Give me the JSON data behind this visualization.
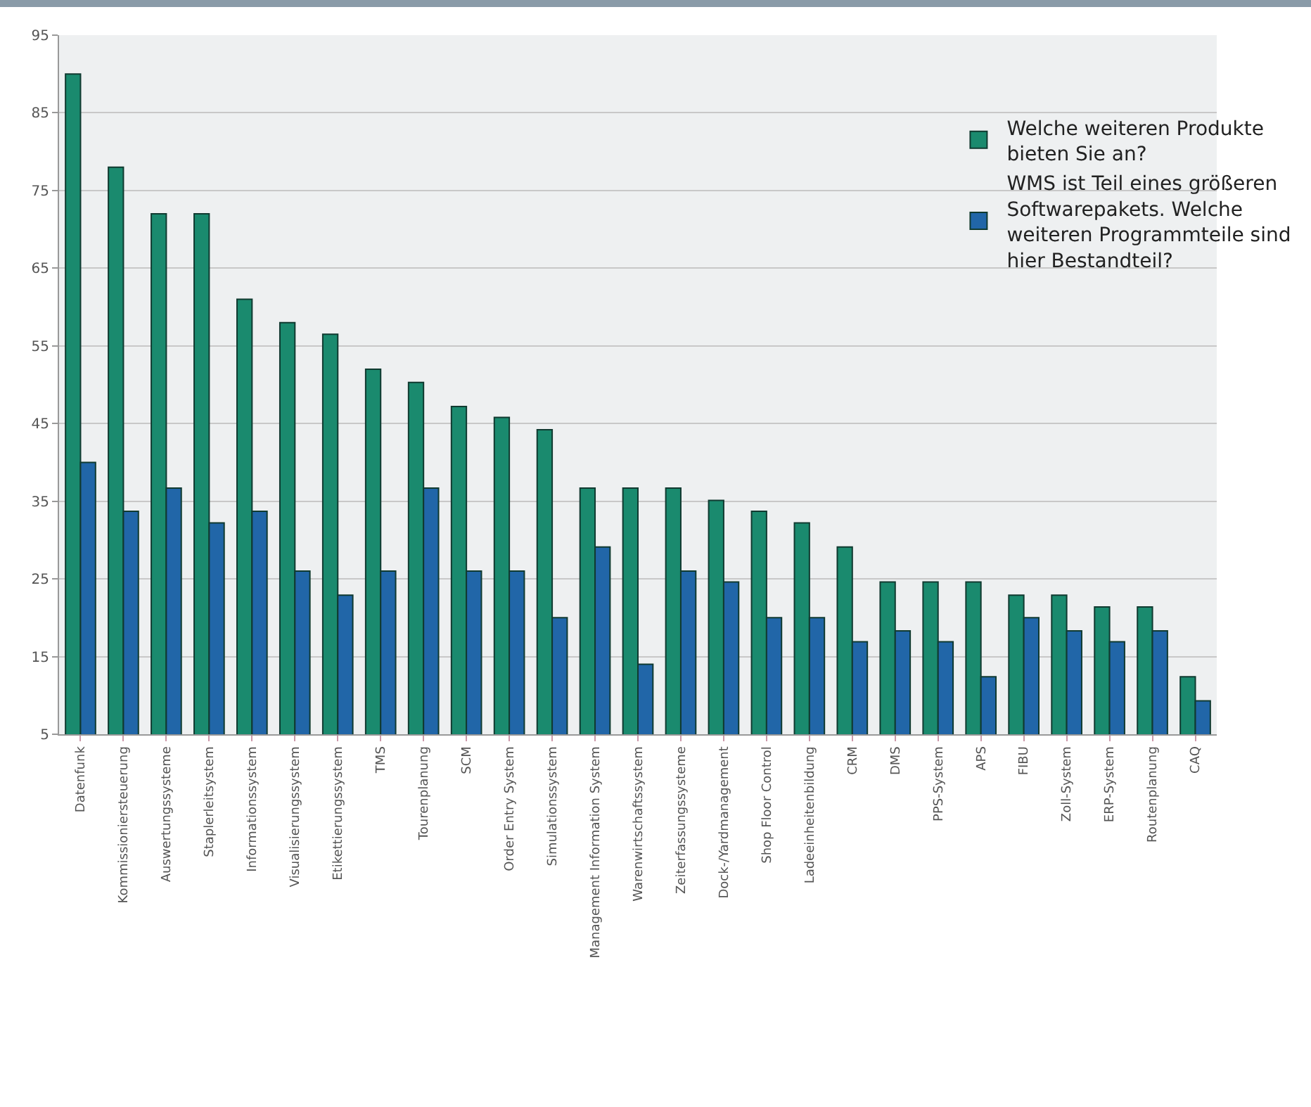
{
  "chart_data": {
    "type": "bar",
    "categories": [
      "Datenfunk",
      "Kommissioniersteuerung",
      "Auswertungssysteme",
      "Staplerleitsystem",
      "Informationssystem",
      "Visualisierungssystem",
      "Etikettierungssystem",
      "TMS",
      "Tourenplanung",
      "SCM",
      "Order Entry System",
      "Simulationssystem",
      "Management Information System",
      "Warenwirtschaftssystem",
      "Zeiterfassungssysteme",
      "Dock-/Yardmanagement",
      "Shop Floor Control",
      "Ladeeinheitenbildung",
      "CRM",
      "DMS",
      "PPS-System",
      "APS",
      "FIBU",
      "Zoll-System",
      "ERP-System",
      "Routenplanung",
      "CAQ"
    ],
    "series": [
      {
        "name": "Welche weiteren Produkte bieten Sie an?",
        "color": "#1a8a6e",
        "values": [
          90,
          78,
          72,
          72,
          61,
          58,
          56.5,
          52,
          50.3,
          47.2,
          45.8,
          44.2,
          36.7,
          36.7,
          36.7,
          35.1,
          33.7,
          32.2,
          29.1,
          24.6,
          24.6,
          24.6,
          22.9,
          22.9,
          21.4,
          21.4,
          12.4
        ]
      },
      {
        "name": "WMS ist Teil eines größeren Softwarepakets. Welche weiteren Programmteile sind hier Bestandteil?",
        "color": "#2166a8",
        "values": [
          40,
          33.7,
          36.7,
          32.2,
          33.7,
          26,
          22.9,
          26,
          36.7,
          26,
          26,
          20,
          29.1,
          14,
          26,
          24.6,
          20,
          20,
          16.9,
          18.3,
          16.9,
          12.4,
          20,
          18.3,
          16.9,
          18.3,
          9.3
        ]
      }
    ],
    "ylim": [
      5,
      95
    ],
    "yticks": [
      5,
      15,
      25,
      35,
      45,
      55,
      65,
      75,
      85,
      95
    ],
    "grid": "y",
    "legend": "top right"
  }
}
